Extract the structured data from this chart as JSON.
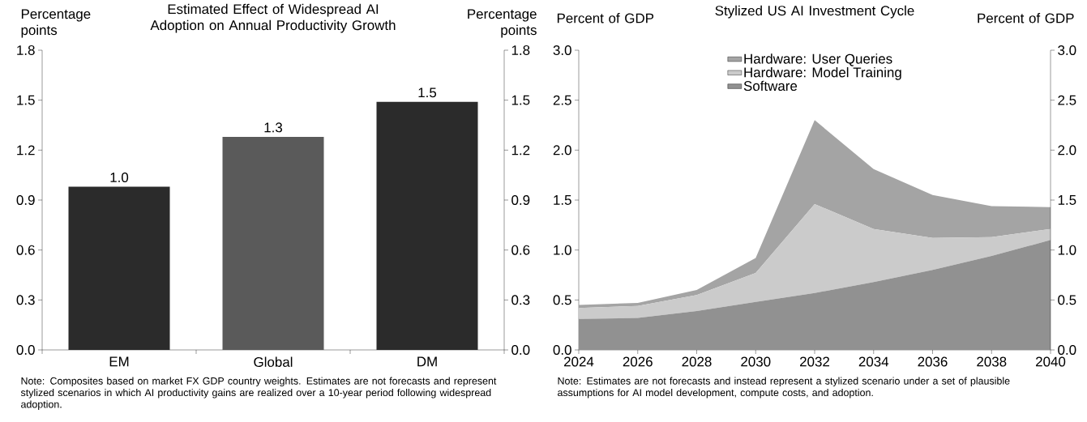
{
  "chart_data": [
    {
      "type": "bar",
      "title": "Estimated Effect of Widespread AI Adoption on Annual Productivity Growth",
      "ylabel": "Percentage points",
      "y2label": "Percentage points",
      "categories": [
        "EM",
        "Global",
        "DM"
      ],
      "values": [
        0.98,
        1.28,
        1.49
      ],
      "colors": [
        "#2b2b2b",
        "#5a5a5a",
        "#2b2b2b"
      ],
      "value_labels": [
        "1.0",
        "1.3",
        "1.5"
      ],
      "ylim": [
        0,
        1.8
      ],
      "yticks": [
        {
          "value": 0,
          "label": "0.0"
        },
        0.3,
        0.6,
        0.9,
        1.2,
        1.5,
        1.8
      ],
      "y2lim": [
        0,
        1.8
      ],
      "y2ticks": [
        {
          "value": 0,
          "label": "0.0"
        },
        0.3,
        0.6,
        0.9,
        1.2,
        1.5,
        1.8
      ],
      "annotations": [
        "Note: Composites based on market FX GDP country weights. Estimates are not forecasts and represent stylized scenarios in which AI productivity gains are realized over a 10-year period following widespread adoption."
      ]
    },
    {
      "type": "area",
      "stacked": true,
      "title": "Stylized US AI Investment Cycle",
      "ylabel": "Percent of GDP",
      "y2label": "Percent of GDP",
      "legend": "top",
      "x": [
        2024,
        2026,
        2028,
        2030,
        2032,
        2034,
        2036,
        2038,
        2040
      ],
      "series": [
        {
          "name": "Software",
          "color": "#919191",
          "values": [
            0.31,
            0.32,
            0.39,
            0.48,
            0.57,
            0.68,
            0.8,
            0.94,
            1.1
          ]
        },
        {
          "name": "Hardware: Model Training",
          "color": "#cbcbcb",
          "values": [
            0.11,
            0.12,
            0.16,
            0.29,
            0.89,
            0.53,
            0.32,
            0.19,
            0.11
          ]
        },
        {
          "name": "Hardware: User Queries",
          "color": "#a4a4a4",
          "values": [
            0.03,
            0.03,
            0.05,
            0.15,
            0.84,
            0.6,
            0.43,
            0.31,
            0.22
          ]
        }
      ],
      "xlim": [
        2024,
        2040
      ],
      "xticks": [
        2024,
        2026,
        2028,
        2030,
        2032,
        2034,
        2036,
        2038,
        2040
      ],
      "ylim": [
        0,
        3
      ],
      "yticks": [
        {
          "value": 0,
          "label": "0.0"
        },
        0.5,
        {
          "value": 1,
          "label": "1.0"
        },
        1.5,
        {
          "value": 2,
          "label": "2.0"
        },
        2.5,
        {
          "value": 3,
          "label": "3.0"
        }
      ],
      "y2lim": [
        0,
        3
      ],
      "y2ticks": [
        {
          "value": 0,
          "label": "0.0"
        },
        0.5,
        {
          "value": 1,
          "label": "1.0"
        },
        1.5,
        {
          "value": 2,
          "label": "2.0"
        },
        2.5,
        {
          "value": 3,
          "label": "3.0"
        }
      ],
      "annotations": [
        "Note: Estimates are not forecasts and instead represent a stylized scenario under a set of plausible assumptions for AI model development, compute costs, and adoption."
      ]
    }
  ]
}
